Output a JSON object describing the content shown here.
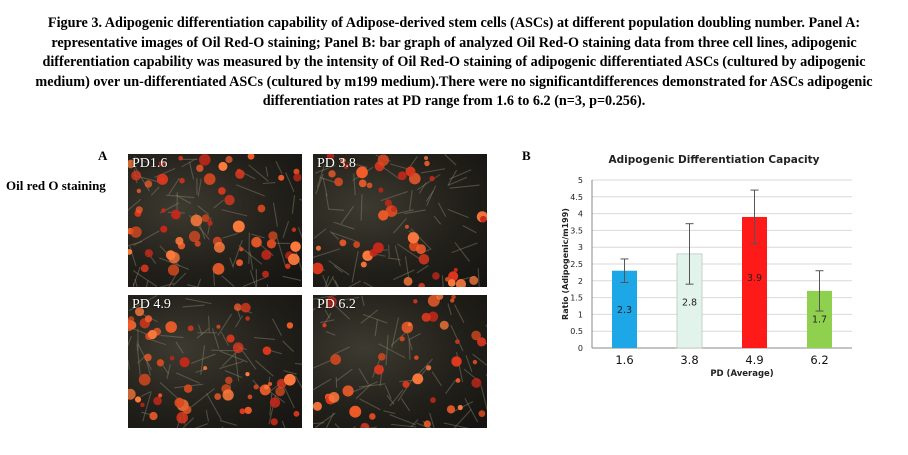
{
  "caption": "Figure 3. Adipogenic differentiation capability of Adipose-derived stem cells (ASCs) at different population doubling number. Panel A: representative images of Oil Red-O staining; Panel B: bar graph of analyzed Oil Red-O staining data from three cell lines, adipogenic differentiation capability was measured by the intensity of Oil Red-O staining of adipogenic differentiated ASCs (cultured by adipogenic medium) over un-differentiated ASCs (cultured by m199 medium).There were no significantdifferences demonstrated for ASCs adipogenic differentiation rates at PD range from 1.6 to 6.2 (n=3, p=0.256).",
  "panel_a": {
    "label": "A",
    "row_label": "Oil red O staining",
    "images": [
      {
        "label": "PD1.6"
      },
      {
        "label": "PD 3.8"
      },
      {
        "label": "PD 4.9"
      },
      {
        "label": "PD 6.2"
      }
    ]
  },
  "panel_b": {
    "label": "B"
  },
  "chart_data": {
    "type": "bar",
    "title": "Adipogenic Differentiation Capacity",
    "xlabel": "PD (Average)",
    "ylabel": "Ratio (Adipogenic/m199)",
    "categories": [
      "1.6",
      "3.8",
      "4.9",
      "6.2"
    ],
    "values": [
      2.3,
      2.8,
      3.9,
      1.7
    ],
    "value_labels": [
      "2.3",
      "2.8",
      "3.9",
      "1.7"
    ],
    "errors": [
      0.35,
      0.9,
      0.8,
      0.6
    ],
    "colors": [
      "#1ea7e6",
      "#e2f3ec",
      "#ff1a1a",
      "#8fd14f"
    ],
    "ylim": [
      0,
      5
    ],
    "yticks": [
      "0",
      "0.5",
      "1",
      "1.5",
      "2",
      "2.5",
      "3",
      "3.5",
      "4",
      "4.5",
      "5"
    ],
    "grid": true
  }
}
